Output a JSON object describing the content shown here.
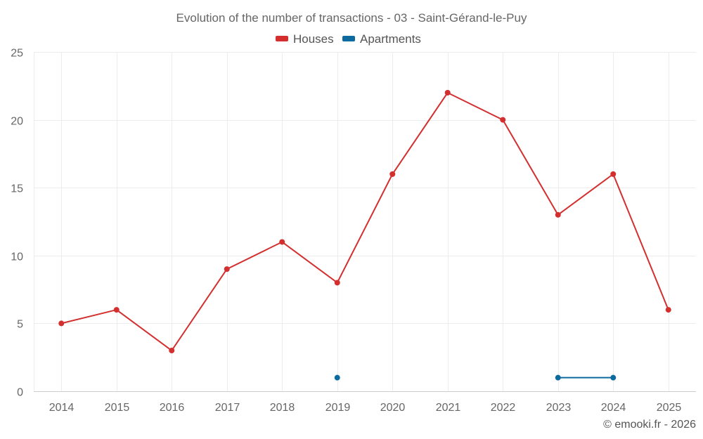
{
  "chart_data": {
    "type": "line",
    "title": "Evolution of the number of transactions - 03 - Saint-Gérand-le-Puy",
    "categories": [
      "2014",
      "2015",
      "2016",
      "2017",
      "2018",
      "2019",
      "2020",
      "2021",
      "2022",
      "2023",
      "2024",
      "2025"
    ],
    "series": [
      {
        "name": "Houses",
        "color": "#d32f2f",
        "values": [
          5,
          6,
          3,
          9,
          11,
          8,
          16,
          22,
          20,
          13,
          16,
          6
        ]
      },
      {
        "name": "Apartments",
        "color": "#0d6a9f",
        "values": [
          null,
          null,
          null,
          null,
          null,
          1,
          null,
          null,
          null,
          1,
          1,
          null
        ]
      }
    ],
    "ylim": [
      0,
      25
    ],
    "yticks": [
      "0",
      "5",
      "10",
      "15",
      "20",
      "25"
    ],
    "xlabel": "",
    "ylabel": "",
    "grid": true,
    "legend_position": "top-center"
  },
  "credit": "© emooki.fr - 2026"
}
